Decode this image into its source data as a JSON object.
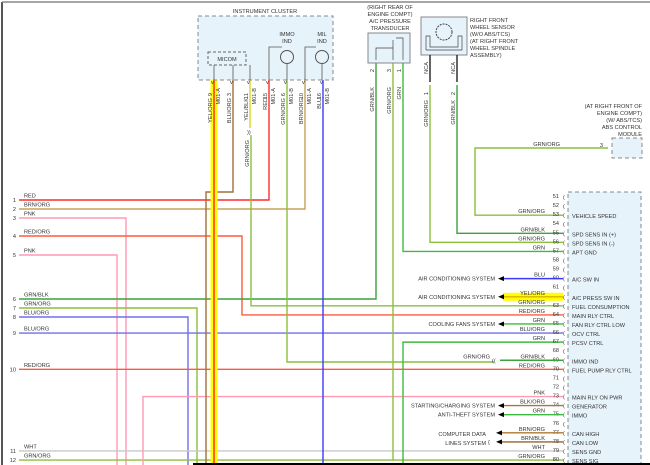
{
  "colors": {
    "RED": "#ff2a2a",
    "RED/ORG": "#ff5a3c",
    "BRN/ORG": "#c9a05c",
    "PNK": "#ff9ab4",
    "GRN/BLK": "#3aa43a",
    "GRN/ORG": "#8cbf3c",
    "BLU/ORG": "#6f6fee",
    "BLU": "#3a3aff",
    "GRN": "#3cbc3c",
    "YEL/ORG": "#ffee00",
    "YEL/BLK": "#d8d820",
    "WHT": "#c8c8c8",
    "BLK/ORG": "#a87440",
    "BRN/BLK": "#8a6a30",
    "BRN/ORG_CAN": "#b07830",
    "highlight": "#ffff00",
    "module_fill": "#e6f3fb",
    "NCA": "#222222"
  },
  "left_connector": [
    {
      "pin": "1",
      "wire": "RED"
    },
    {
      "pin": "2",
      "wire": "BRN/ORG"
    },
    {
      "pin": "3",
      "wire": "PNK"
    },
    {
      "pin": "4",
      "wire": "RED/ORG"
    },
    {
      "pin": "5",
      "wire": "PNK"
    },
    {
      "pin": "6",
      "wire": "GRN/BLK"
    },
    {
      "pin": "7",
      "wire": "GRN/ORG"
    },
    {
      "pin": "8",
      "wire": "BLU/ORG"
    },
    {
      "pin": "9",
      "wire": "BLU/ORG"
    },
    {
      "pin": "10",
      "wire": "RED/ORG"
    },
    {
      "pin": "11",
      "wire": "WHT"
    },
    {
      "pin": "12",
      "wire": "GRN/ORG"
    }
  ],
  "instrument_cluster": {
    "title": "INSTRUMENT CLUSTER",
    "micom": "MICOM",
    "immo_ind": [
      "IMMO",
      "IND"
    ],
    "mil_ind": [
      "MIL",
      "IND"
    ],
    "pins": [
      {
        "pin": "9",
        "wire": "YEL/ORG",
        "conn": "M01-A"
      },
      {
        "pin": "3",
        "wire": "BLU/ORG",
        "conn": ""
      },
      {
        "pin": "11",
        "wire": "YEL/BLK",
        "conn": "M01-B"
      },
      {
        "pin": "15",
        "wire": "RED",
        "conn": "M01-A"
      },
      {
        "pin": "6",
        "wire": "GRN/ORG",
        "conn": "M01-B"
      },
      {
        "pin": "10",
        "wire": "BRN/ORG",
        "conn": "M01-A"
      },
      {
        "pin": "16",
        "wire": "BLU",
        "conn": "M01-B"
      }
    ],
    "splice_wire": "GRN/ORG"
  },
  "ac_transducer": {
    "title": [
      "(RIGHT REAR OF",
      "ENGINE COMPT)",
      "A/C PRESSURE",
      "TRANSDUCER"
    ],
    "pins": [
      {
        "pin": "2",
        "wire": "GRN/BLK"
      },
      {
        "pin": "3",
        "wire": "GRN/ORG"
      },
      {
        "pin": "1",
        "wire": "GRN"
      }
    ]
  },
  "wheel_sensor": {
    "title": [
      "RIGHT FRONT",
      "WHEEL SENSOR",
      "(W/O ABS/TCS)",
      "(AT RIGHT FRONT",
      "WHEEL SPINDLE",
      "ASSEMBLY)"
    ],
    "pins": [
      {
        "pin": "1",
        "wire": "GRN/ORG",
        "nca": "NCA"
      },
      {
        "pin": "2",
        "wire": "GRN/BLK",
        "nca": "NCA"
      }
    ]
  },
  "abs_module": {
    "title": [
      "(AT RIGHT FRONT OF",
      "ENGINE COMPT)",
      "(W/ ABS/TCS)",
      "ABS CONTROL",
      "MODULE"
    ],
    "pin": "3",
    "wire": "GRN/ORG"
  },
  "module_pins": [
    {
      "pin": "51",
      "wire": "",
      "label": ""
    },
    {
      "pin": "52",
      "wire": "",
      "label": ""
    },
    {
      "pin": "53",
      "wire": "GRN/ORG",
      "label": "VEHICLE SPEED"
    },
    {
      "pin": "54",
      "wire": "",
      "label": ""
    },
    {
      "pin": "55",
      "wire": "GRN/BLK",
      "label": "SPD SENS IN (+)"
    },
    {
      "pin": "56",
      "wire": "GRN/ORG",
      "label": "SPD SENS IN (-)"
    },
    {
      "pin": "57",
      "wire": "GRN",
      "label": "APT GND"
    },
    {
      "pin": "58",
      "wire": "",
      "label": ""
    },
    {
      "pin": "59",
      "wire": "",
      "label": ""
    },
    {
      "pin": "60",
      "wire": "BLU",
      "label": "A/C SW IN",
      "system": "AIR CONDITIONING SYSTEM"
    },
    {
      "pin": "61",
      "wire": "",
      "label": ""
    },
    {
      "pin": "62",
      "wire": "YEL/ORG",
      "label": "A/C PRESS SW IN",
      "system": "AIR CONDITIONING SYSTEM",
      "highlight": true
    },
    {
      "pin": "63",
      "wire": "GRN/ORG",
      "label": "FUEL CONSUMPTION"
    },
    {
      "pin": "64",
      "wire": "RED/ORG",
      "label": "MAIN RLY CTRL"
    },
    {
      "pin": "65",
      "wire": "GRN",
      "label": "FAN RLY CTRL LOW",
      "system": "COOLING FANS SYSTEM"
    },
    {
      "pin": "66",
      "wire": "BLU/ORG",
      "label": "OCV CTRL"
    },
    {
      "pin": "67",
      "wire": "GRN",
      "label": "PCSV CTRL"
    },
    {
      "pin": "68",
      "wire": "",
      "label": ""
    },
    {
      "pin": "69",
      "wire": "GRN/BLK",
      "label": "IMMO IND",
      "outer_wire": "GRN/ORG"
    },
    {
      "pin": "70",
      "wire": "RED/ORG",
      "label": "FUEL PUMP RLY CTRL"
    },
    {
      "pin": "71",
      "wire": "",
      "label": ""
    },
    {
      "pin": "72",
      "wire": "",
      "label": ""
    },
    {
      "pin": "73",
      "wire": "PNK",
      "label": "MAIN RLY ON PWR"
    },
    {
      "pin": "74",
      "wire": "BLK/ORG",
      "label": "GENERATOR",
      "system": "STARTING/CHARGING SYSTEM"
    },
    {
      "pin": "75",
      "wire": "GRN",
      "label": "IMMO",
      "system": "ANTI-THEFT SYSTEM"
    },
    {
      "pin": "76",
      "wire": "",
      "label": ""
    },
    {
      "pin": "77",
      "wire": "BRN/ORG",
      "label": "CAN HIGH"
    },
    {
      "pin": "78",
      "wire": "BRN/BLK",
      "label": "CAN LOW"
    },
    {
      "pin": "79",
      "wire": "WHT",
      "label": "SENS GND"
    },
    {
      "pin": "80",
      "wire": "GRN/ORG",
      "label": "SENS SIG"
    }
  ],
  "data_lines_system": [
    "COMPUTER DATA",
    "LINES SYSTEM"
  ]
}
